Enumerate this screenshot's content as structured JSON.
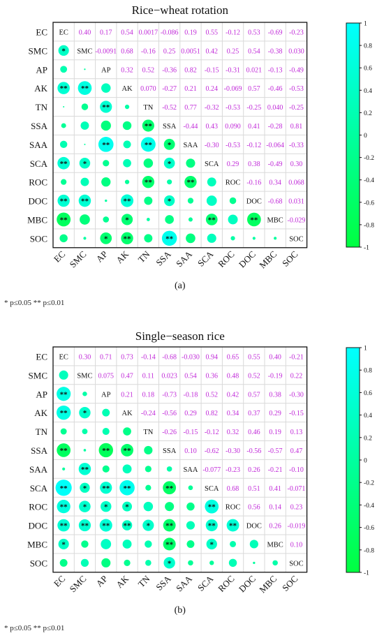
{
  "footnote": {
    "line": "* p≤0.05 ** p≤0.01"
  },
  "colorbar": {
    "ticks": [
      "1",
      "0.8",
      "0.6",
      "0.4",
      "0.2",
      "0",
      "-0.2",
      "-0.4",
      "-0.6",
      "-0.8",
      "-1"
    ],
    "high_color": "#00FFFF",
    "low_color": "#00FF40"
  },
  "chart_data": [
    {
      "type": "heatmap",
      "title": "Rice−wheat rotation",
      "caption": "(a)",
      "variables": [
        "EC",
        "SMC",
        "AP",
        "AK",
        "TN",
        "SSA",
        "SAA",
        "SCA",
        "ROC",
        "DOC",
        "MBC",
        "SOC"
      ],
      "upper_labels": [
        [
          "",
          "0.40",
          "0.17",
          "0.54",
          "0.0017",
          "-0.086",
          "0.19",
          "0.55",
          "-0.12",
          "0.53",
          "-0.69",
          "-0.23"
        ],
        [
          "",
          "",
          "-0.0091",
          "0.68",
          "-0.16",
          "0.25",
          "0.0051",
          "0.42",
          "0.25",
          "0.54",
          "-0.38",
          "0.030"
        ],
        [
          "",
          "",
          "",
          "0.32",
          "0.52",
          "-0.36",
          "0.82",
          "-0.15",
          "-0.31",
          "0.021",
          "-0.13",
          "-0.49"
        ],
        [
          "",
          "",
          "",
          "",
          "0.070",
          "-0.27",
          "0.21",
          "0.24",
          "-0.069",
          "0.57",
          "-0.46",
          "-0.53"
        ],
        [
          "",
          "",
          "",
          "",
          "",
          "-0.52",
          "0.77",
          "-0.32",
          "-0.53",
          "-0.25",
          "0.040",
          "-0.25"
        ],
        [
          "",
          "",
          "",
          "",
          "",
          "",
          "-0.44",
          "0.43",
          "0.090",
          "0.41",
          "-0.28",
          "0.81"
        ],
        [
          "",
          "",
          "",
          "",
          "",
          "",
          "",
          "-0.30",
          "-0.53",
          "-0.12",
          "-0.064",
          "-0.33"
        ],
        [
          "",
          "",
          "",
          "",
          "",
          "",
          "",
          "",
          "0.29",
          "0.38",
          "-0.49",
          "0.30"
        ],
        [
          "",
          "",
          "",
          "",
          "",
          "",
          "",
          "",
          "",
          "-0.16",
          "0.34",
          "0.068"
        ],
        [
          "",
          "",
          "",
          "",
          "",
          "",
          "",
          "",
          "",
          "",
          "-0.68",
          "0.031"
        ],
        [
          "",
          "",
          "",
          "",
          "",
          "",
          "",
          "",
          "",
          "",
          "",
          "-0.029"
        ],
        [
          "",
          "",
          "",
          "",
          "",
          "",
          "",
          "",
          "",
          "",
          "",
          ""
        ]
      ],
      "stars": [
        [
          "",
          "",
          "",
          "",
          "",
          "",
          "",
          "",
          "",
          "",
          "",
          ""
        ],
        [
          "*",
          "",
          "",
          "",
          "",
          "",
          "",
          "",
          "",
          "",
          "",
          ""
        ],
        [
          "",
          "",
          "",
          "",
          "",
          "",
          "",
          "",
          "",
          "",
          "",
          ""
        ],
        [
          "**",
          "**",
          "",
          "",
          "",
          "",
          "",
          "",
          "",
          "",
          "",
          ""
        ],
        [
          "",
          "",
          "**",
          "",
          "",
          "",
          "",
          "",
          "",
          "",
          "",
          ""
        ],
        [
          "",
          "",
          "",
          "",
          "**",
          "",
          "",
          "",
          "",
          "",
          "",
          ""
        ],
        [
          "",
          "",
          "**",
          "",
          "**",
          "*",
          "",
          "",
          "",
          "",
          "",
          ""
        ],
        [
          "**",
          "*",
          "",
          "",
          "",
          "*",
          "",
          "",
          "",
          "",
          "",
          ""
        ],
        [
          "",
          "",
          "",
          "",
          "**",
          "",
          "**",
          "",
          "",
          "",
          "",
          ""
        ],
        [
          "**",
          "**",
          "",
          "**",
          "",
          "*",
          "",
          "",
          "",
          "",
          "",
          ""
        ],
        [
          "**",
          "",
          "",
          "*",
          "",
          "",
          "",
          "**",
          "",
          "**",
          "",
          ""
        ],
        [
          "",
          "",
          "*",
          "**",
          "",
          "**",
          "",
          "",
          "",
          "",
          "",
          ""
        ]
      ]
    },
    {
      "type": "heatmap",
      "title": "Single−season rice",
      "caption": "(b)",
      "variables": [
        "EC",
        "SMC",
        "AP",
        "AK",
        "TN",
        "SSA",
        "SAA",
        "SCA",
        "ROC",
        "DOC",
        "MBC",
        "SOC"
      ],
      "upper_labels": [
        [
          "",
          "0.30",
          "0.71",
          "0.73",
          "-0.14",
          "-0.68",
          "-0.030",
          "0.94",
          "0.65",
          "0.55",
          "0.40",
          "-0.21"
        ],
        [
          "",
          "",
          "0.075",
          "0.47",
          "0.11",
          "0.023",
          "0.54",
          "0.36",
          "0.48",
          "0.52",
          "-0.19",
          "0.22"
        ],
        [
          "",
          "",
          "",
          "0.21",
          "0.18",
          "-0.73",
          "-0.18",
          "0.52",
          "0.42",
          "0.57",
          "0.38",
          "-0.30"
        ],
        [
          "",
          "",
          "",
          "",
          "-0.24",
          "-0.56",
          "0.29",
          "0.82",
          "0.34",
          "0.37",
          "0.29",
          "-0.15"
        ],
        [
          "",
          "",
          "",
          "",
          "",
          "-0.26",
          "-0.15",
          "-0.12",
          "0.32",
          "0.46",
          "0.19",
          "0.13"
        ],
        [
          "",
          "",
          "",
          "",
          "",
          "",
          "0.10",
          "-0.62",
          "-0.30",
          "-0.56",
          "-0.57",
          "0.47"
        ],
        [
          "",
          "",
          "",
          "",
          "",
          "",
          "",
          "-0.077",
          "-0.23",
          "0.26",
          "-0.21",
          "-0.10"
        ],
        [
          "",
          "",
          "",
          "",
          "",
          "",
          "",
          "",
          "0.68",
          "0.51",
          "0.41",
          "-0.071"
        ],
        [
          "",
          "",
          "",
          "",
          "",
          "",
          "",
          "",
          "",
          "0.56",
          "0.14",
          "0.23"
        ],
        [
          "",
          "",
          "",
          "",
          "",
          "",
          "",
          "",
          "",
          "",
          "0.26",
          "-0.019"
        ],
        [
          "",
          "",
          "",
          "",
          "",
          "",
          "",
          "",
          "",
          "",
          "",
          "0.10"
        ],
        [
          "",
          "",
          "",
          "",
          "",
          "",
          "",
          "",
          "",
          "",
          "",
          ""
        ]
      ],
      "stars": [
        [
          "",
          "",
          "",
          "",
          "",
          "",
          "",
          "",
          "",
          "",
          "",
          ""
        ],
        [
          "",
          "",
          "",
          "",
          "",
          "",
          "",
          "",
          "",
          "",
          "",
          ""
        ],
        [
          "**",
          "",
          "",
          "",
          "",
          "",
          "",
          "",
          "",
          "",
          "",
          ""
        ],
        [
          "**",
          "*",
          "",
          "",
          "",
          "",
          "",
          "",
          "",
          "",
          "",
          ""
        ],
        [
          "",
          "",
          "",
          "",
          "",
          "",
          "",
          "",
          "",
          "",
          "",
          ""
        ],
        [
          "**",
          "",
          "**",
          "**",
          "",
          "",
          "",
          "",
          "",
          "",
          "",
          ""
        ],
        [
          "",
          "**",
          "",
          "",
          "",
          "",
          "",
          "",
          "",
          "",
          "",
          ""
        ],
        [
          "**",
          "*",
          "**",
          "**",
          "",
          "**",
          "",
          "",
          "",
          "",
          "",
          ""
        ],
        [
          "**",
          "*",
          "*",
          "*",
          "",
          "",
          "",
          "**",
          "",
          "",
          "",
          ""
        ],
        [
          "**",
          "**",
          "**",
          "**",
          "*",
          "**",
          "",
          "**",
          "**",
          "",
          "",
          ""
        ],
        [
          "*",
          "",
          "",
          "",
          "",
          "**",
          "",
          "*",
          "",
          "",
          "",
          ""
        ],
        [
          "",
          "",
          "",
          "",
          "",
          "*",
          "",
          "",
          "",
          "",
          "",
          ""
        ]
      ]
    }
  ]
}
